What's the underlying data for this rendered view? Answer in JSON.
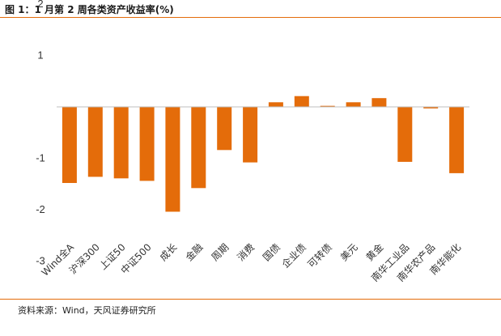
{
  "title": "图 1：1 月第 2 周各类资产收益率(%)",
  "source": "资料来源：Wind，天风证券研究所",
  "colors": {
    "bar": "#e46c0a",
    "accent_rule": "#e46c0a",
    "axis": "#bfbfbf",
    "text": "#333333"
  },
  "chart_data": {
    "type": "bar",
    "title": "图 1：1 月第 2 周各类资产收益率(%)",
    "xlabel": "",
    "ylabel": "",
    "ylim": [
      -3,
      2
    ],
    "yticks": [
      2,
      1,
      -1,
      -2,
      -3
    ],
    "grid": false,
    "legend": "none",
    "categories": [
      "Wind全A",
      "沪深300",
      "上证50",
      "中证500",
      "成长",
      "金融",
      "周期",
      "消费",
      "国债",
      "企业债",
      "可转债",
      "美元",
      "黄金",
      "南华工业品",
      "南华农产品",
      "南华能化"
    ],
    "values": [
      -1.48,
      -1.36,
      -1.39,
      -1.44,
      -2.04,
      -1.58,
      -0.84,
      -1.08,
      0.09,
      0.21,
      0.02,
      0.09,
      0.17,
      -1.07,
      -0.03,
      -1.29
    ]
  }
}
